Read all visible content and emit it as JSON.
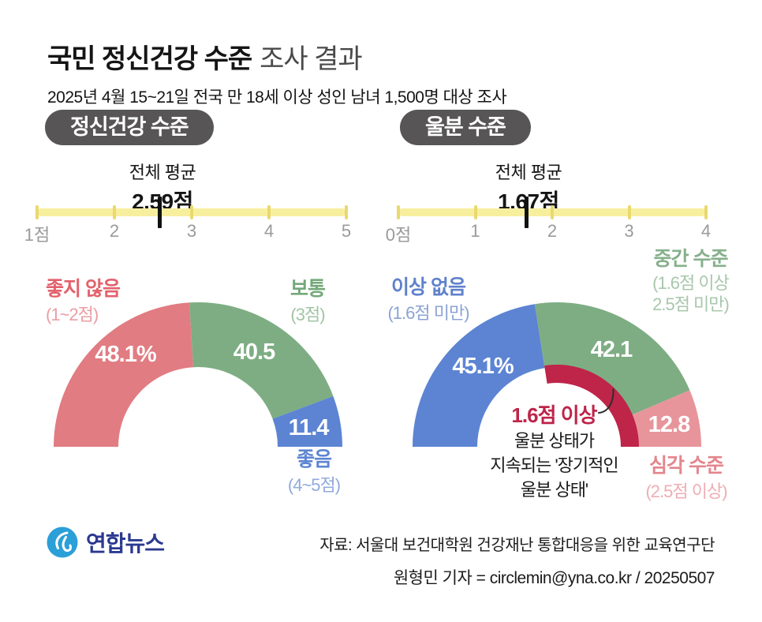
{
  "header": {
    "title_bold": "국민 정신건강 수준",
    "title_light": "조사 결과",
    "subtitle": "2025년 4월 15~21일 전국 만 18세 이상 성인 남녀 1,500명 대상 조사"
  },
  "colors": {
    "title": "#151515",
    "title_light": "#4a4a4a",
    "badge_bg": "#575555",
    "badge_text": "#ffffff",
    "scale_bar": "#f8ef9e",
    "scale_tick": "#e9d96e",
    "scale_marker": "#111111",
    "scale_text": "#9a9a9a",
    "logo_blue": "#2b9fd8",
    "logo_navy": "#2b3990"
  },
  "chart_data": [
    {
      "type": "half-donut",
      "panel_badge": "정신건강 수준",
      "scale": {
        "min": 1,
        "max": 5,
        "tick_labels": [
          "1점",
          "2",
          "3",
          "4",
          "5"
        ],
        "average_title": "전체 평균",
        "average_value": 2.59,
        "average_display": "2.59점"
      },
      "value_label_color": "#ffffff",
      "segments": [
        {
          "name": "좋지 않음",
          "qualifier": "(1~2점)",
          "value": 48.1,
          "display": "48.1%",
          "color": "#e17c82",
          "name_color": "#e2626d",
          "qualifier_color": "#ec9da3"
        },
        {
          "name": "보통",
          "qualifier": "(3점)",
          "value": 40.5,
          "display": "40.5",
          "color": "#7ead83",
          "name_color": "#74a87a",
          "qualifier_color": "#a2c4a5"
        },
        {
          "name": "좋음",
          "qualifier": "(4~5점)",
          "value": 11.4,
          "display": "11.4",
          "color": "#5c84d3",
          "name_color": "#5e85d2",
          "qualifier_color": "#90aadd"
        }
      ]
    },
    {
      "type": "half-donut",
      "panel_badge": "울분 수준",
      "scale": {
        "min": 0,
        "max": 4,
        "tick_labels": [
          "0점",
          "1",
          "2",
          "3",
          "4"
        ],
        "average_title": "전체 평균",
        "average_value": 1.67,
        "average_display": "1.67점"
      },
      "value_label_color": "#ffffff",
      "segments": [
        {
          "name": "이상 없음",
          "qualifier": "(1.6점 미만)",
          "value": 45.1,
          "display": "45.1%",
          "color": "#5c84d3",
          "name_color": "#6082cc",
          "qualifier_color": "#8ba3d4"
        },
        {
          "name": "중간 수준",
          "qualifier": "(1.6점 이상 2.5점 미만)",
          "qualifier_lines": [
            "(1.6점 이상",
            "2.5점 미만)"
          ],
          "value": 42.1,
          "display": "42.1",
          "color": "#7ead83",
          "name_color": "#86b08b",
          "qualifier_color": "#a8c7ab"
        },
        {
          "name": "심각 수준",
          "qualifier": "(2.5점 이상)",
          "value": 12.8,
          "display": "12.8",
          "color": "#e8949b",
          "name_color": "#e4858d",
          "qualifier_color": "#efadb3"
        }
      ],
      "inner_band": {
        "label": "1.6점 이상",
        "from_value": 45.1,
        "to_value": 100,
        "color": "#bf2449",
        "label_color": "#bf2449",
        "annotation_color": "#1a1a1a",
        "annotation_lines": [
          "울분 상태가",
          "지속되는 '장기적인",
          "울분 상태'"
        ]
      }
    }
  ],
  "footer": {
    "logo_text": "연합뉴스",
    "source": "자료: 서울대 보건대학원 건강재난 통합대응을 위한 교육연구단",
    "credit": "원형민 기자 = circlemin@yna.co.kr / 20250507"
  }
}
